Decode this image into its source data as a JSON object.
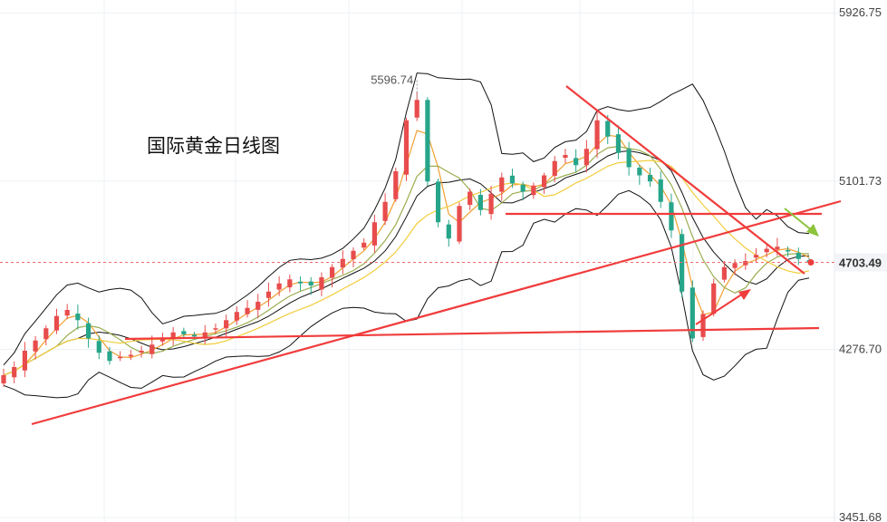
{
  "chart_data": {
    "type": "candlestick",
    "title": "国际黄金日线图",
    "y_ticks": [
      "5926.75",
      "5101.73",
      "4276.70",
      "3451.68"
    ],
    "y_tick_values": [
      5926.75,
      5101.73,
      4276.7,
      3451.68
    ],
    "ylim": [
      3430,
      5990
    ],
    "peak_label": "5596.74",
    "peak_value": 5596.74,
    "last_price_label": "4703.49",
    "last_price": 4703.49,
    "grid": true,
    "colors": {
      "up": "#e84c4c",
      "down": "#27a58a",
      "trendline": "#f03c3c",
      "ma_fast": "#f0a030",
      "ma_mid": "#9aae50",
      "ma_slow": "#f2cd3c",
      "bollinger": "#111111",
      "forecast_arrow": "#8cc43c",
      "last_price_line": "#ef6b6b"
    },
    "series": [
      {
        "name": "price",
        "values": [
          4150,
          4190,
          4270,
          4320,
          4380,
          4440,
          4470,
          4420,
          4330,
          4260,
          4220,
          4240,
          4250,
          4270,
          4300,
          4330,
          4360,
          4350,
          4340,
          4360,
          4380,
          4420,
          4460,
          4480,
          4510,
          4560,
          4600,
          4620,
          4600,
          4590,
          4630,
          4680,
          4720,
          4760,
          4800,
          4900,
          5000,
          5150,
          5400,
          5500,
          5100,
          4900,
          4820,
          4980,
          5050,
          4960,
          5040,
          5120,
          5090,
          5050,
          5080,
          5130,
          5200,
          5230,
          5180,
          5260,
          5400,
          5320,
          5240,
          5170,
          5130,
          5100,
          5000,
          4860,
          4560,
          4330,
          4450,
          4600,
          4680,
          4700,
          4710,
          4740,
          4770,
          4780,
          4760,
          4720,
          4703.49
        ]
      }
    ]
  }
}
